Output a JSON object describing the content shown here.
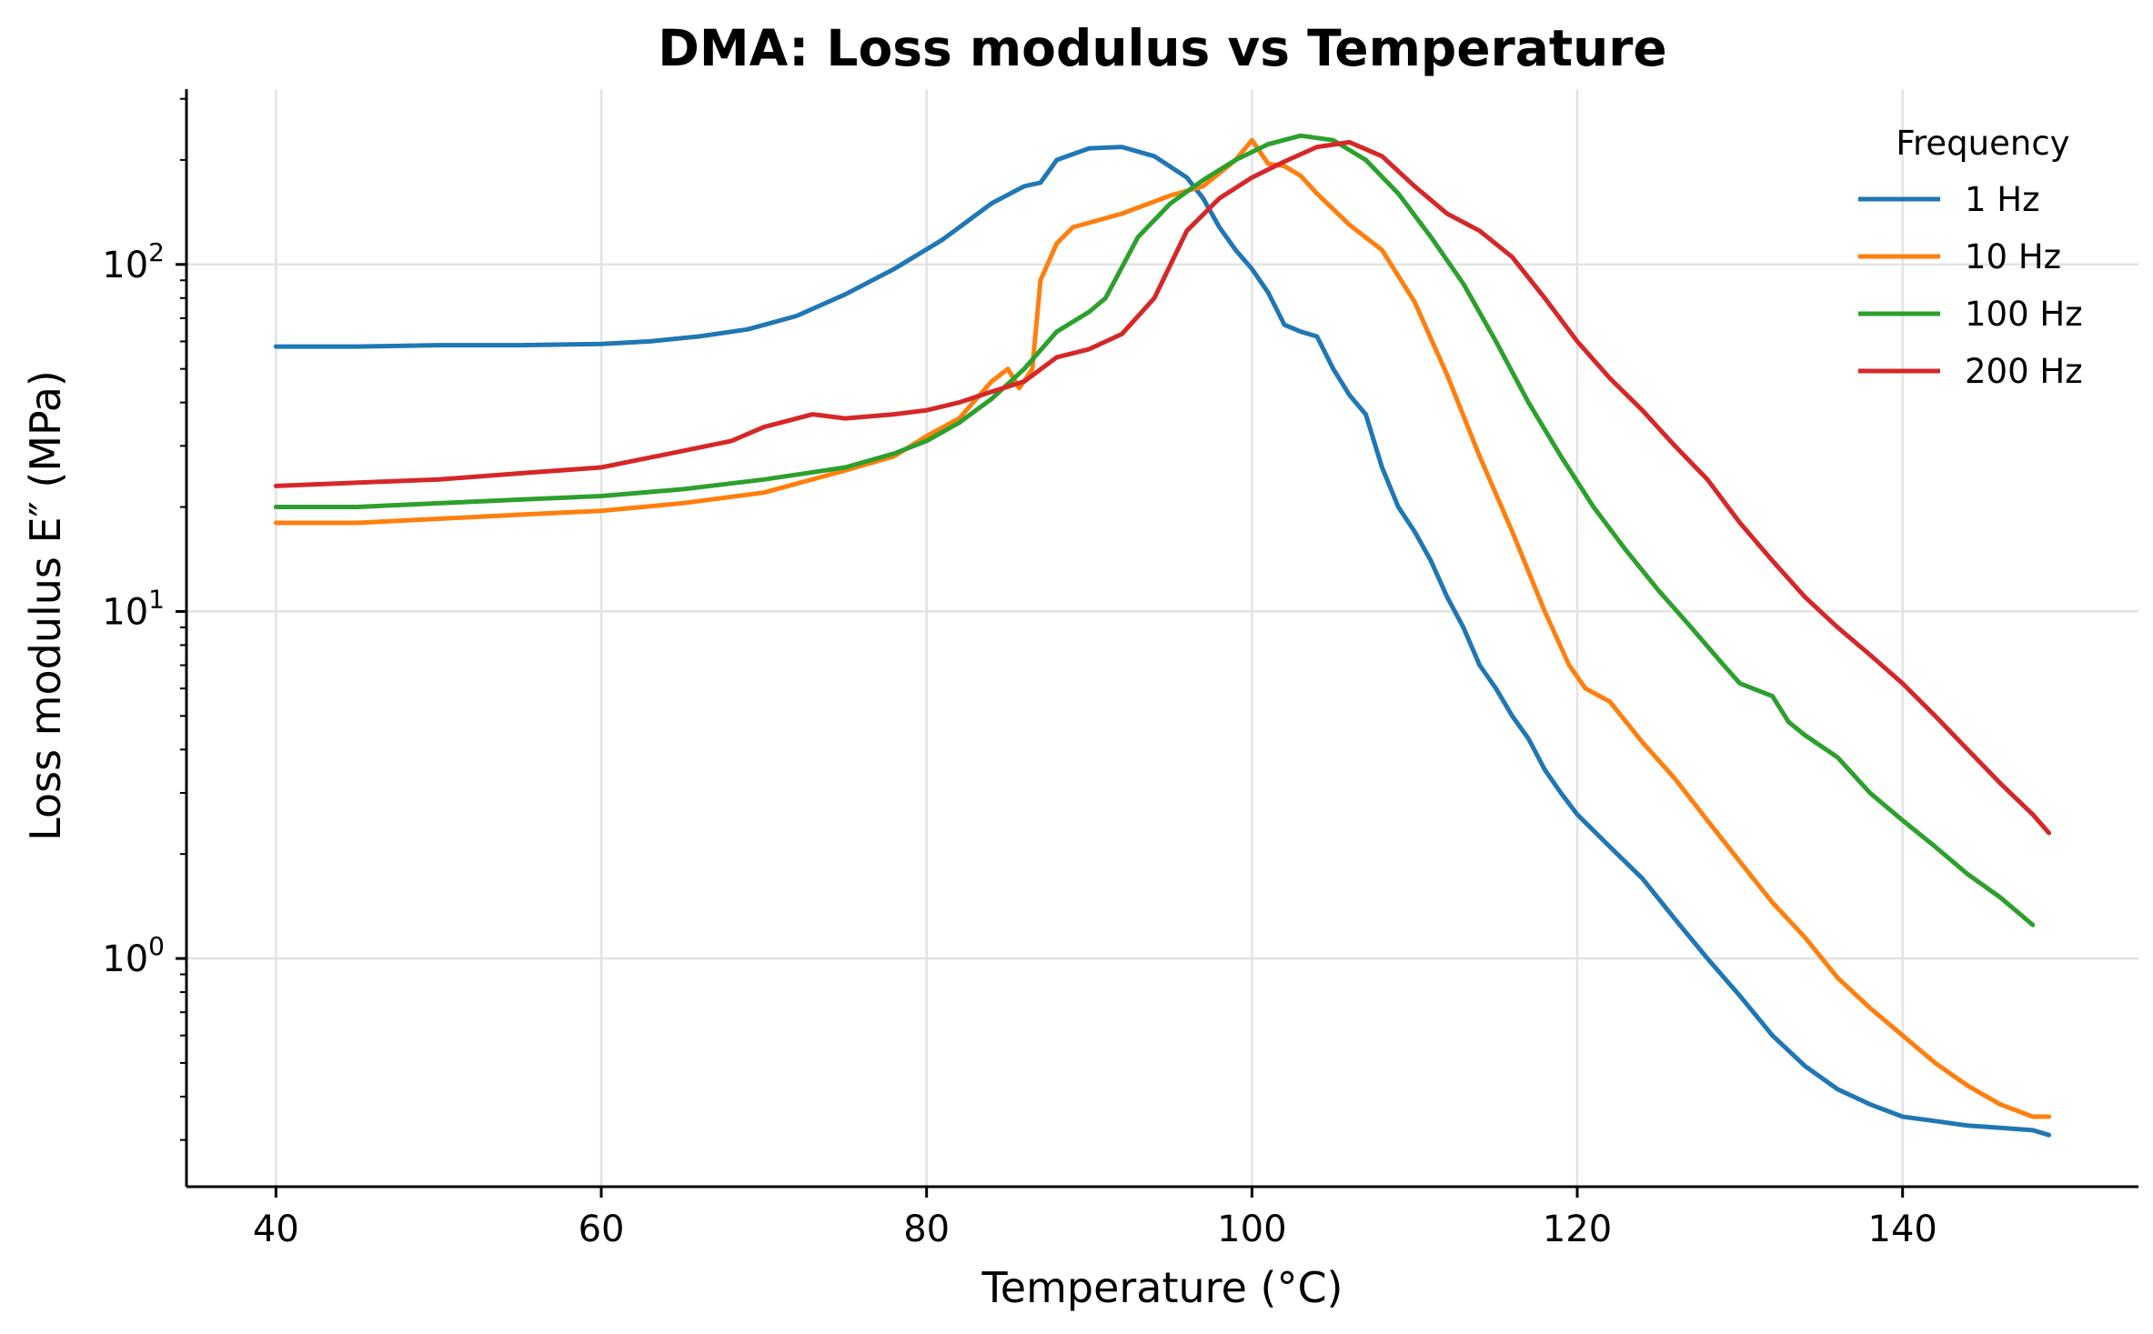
{
  "chart_data": {
    "type": "line",
    "title": "DMA: Loss modulus vs Temperature",
    "xlabel": "Temperature (°C)",
    "ylabel": "Loss modulus E″ (MPa)",
    "xlim": [
      34.5,
      154.5
    ],
    "ylim": [
      0.22,
      320
    ],
    "yscale": "log",
    "grid": true,
    "x_ticks": [
      40,
      60,
      80,
      100,
      120,
      140
    ],
    "y_ticks": [
      {
        "value": 1,
        "base": "10",
        "exp": "0"
      },
      {
        "value": 10,
        "base": "10",
        "exp": "1"
      },
      {
        "value": 100,
        "base": "10",
        "exp": "2"
      }
    ],
    "legend": {
      "title": "Frequency",
      "placement": "upper-right"
    },
    "series": [
      {
        "name": "1 Hz",
        "color": "#1f77b4",
        "points": [
          [
            40,
            58
          ],
          [
            45,
            58
          ],
          [
            50,
            58.5
          ],
          [
            55,
            58.5
          ],
          [
            60,
            59
          ],
          [
            63,
            60
          ],
          [
            66,
            62
          ],
          [
            69,
            65
          ],
          [
            72,
            71
          ],
          [
            75,
            82
          ],
          [
            78,
            97
          ],
          [
            81,
            118
          ],
          [
            84,
            150
          ],
          [
            86,
            168
          ],
          [
            87,
            172
          ],
          [
            88,
            200
          ],
          [
            90,
            216
          ],
          [
            92,
            218
          ],
          [
            94,
            205
          ],
          [
            96,
            178
          ],
          [
            97,
            155
          ],
          [
            98,
            128
          ],
          [
            99,
            110
          ],
          [
            100,
            97
          ],
          [
            101,
            83
          ],
          [
            102,
            67
          ],
          [
            103,
            64
          ],
          [
            104,
            62
          ],
          [
            105,
            50
          ],
          [
            106,
            42
          ],
          [
            107,
            37
          ],
          [
            108,
            26
          ],
          [
            109,
            20
          ],
          [
            110,
            17
          ],
          [
            111,
            14
          ],
          [
            112,
            11
          ],
          [
            113,
            9
          ],
          [
            114,
            7
          ],
          [
            115,
            6
          ],
          [
            116,
            5
          ],
          [
            117,
            4.3
          ],
          [
            118,
            3.5
          ],
          [
            119,
            3
          ],
          [
            120,
            2.6
          ],
          [
            122,
            2.1
          ],
          [
            124,
            1.7
          ],
          [
            126,
            1.3
          ],
          [
            128,
            1.0
          ],
          [
            130,
            0.78
          ],
          [
            132,
            0.6
          ],
          [
            134,
            0.49
          ],
          [
            136,
            0.42
          ],
          [
            138,
            0.38
          ],
          [
            140,
            0.35
          ],
          [
            142,
            0.34
          ],
          [
            144,
            0.33
          ],
          [
            146,
            0.325
          ],
          [
            148,
            0.32
          ],
          [
            149,
            0.31
          ]
        ]
      },
      {
        "name": "10 Hz",
        "color": "#ff7f0e",
        "points": [
          [
            40,
            18
          ],
          [
            45,
            18
          ],
          [
            50,
            18.5
          ],
          [
            55,
            19
          ],
          [
            60,
            19.5
          ],
          [
            65,
            20.5
          ],
          [
            70,
            22
          ],
          [
            75,
            25.5
          ],
          [
            78,
            28
          ],
          [
            80,
            32
          ],
          [
            82,
            36
          ],
          [
            84,
            46
          ],
          [
            85,
            50
          ],
          [
            85.7,
            44
          ],
          [
            86.5,
            50
          ],
          [
            87,
            90
          ],
          [
            88,
            115
          ],
          [
            89,
            128
          ],
          [
            92,
            140
          ],
          [
            95,
            158
          ],
          [
            97,
            168
          ],
          [
            99,
            200
          ],
          [
            100,
            228
          ],
          [
            101,
            195
          ],
          [
            102,
            192
          ],
          [
            103,
            180
          ],
          [
            104,
            160
          ],
          [
            106,
            130
          ],
          [
            108,
            110
          ],
          [
            110,
            78
          ],
          [
            112,
            48
          ],
          [
            114,
            28
          ],
          [
            116,
            17
          ],
          [
            118,
            10
          ],
          [
            119.5,
            7
          ],
          [
            120.5,
            6
          ],
          [
            122,
            5.5
          ],
          [
            124,
            4.2
          ],
          [
            126,
            3.3
          ],
          [
            128,
            2.5
          ],
          [
            130,
            1.9
          ],
          [
            132,
            1.45
          ],
          [
            134,
            1.15
          ],
          [
            136,
            0.88
          ],
          [
            138,
            0.72
          ],
          [
            140,
            0.6
          ],
          [
            142,
            0.5
          ],
          [
            144,
            0.43
          ],
          [
            146,
            0.38
          ],
          [
            148,
            0.35
          ],
          [
            149,
            0.35
          ]
        ]
      },
      {
        "name": "100 Hz",
        "color": "#2ca02c",
        "points": [
          [
            40,
            20
          ],
          [
            45,
            20
          ],
          [
            50,
            20.5
          ],
          [
            55,
            21
          ],
          [
            60,
            21.5
          ],
          [
            65,
            22.5
          ],
          [
            70,
            24
          ],
          [
            75,
            26
          ],
          [
            78,
            28.5
          ],
          [
            80,
            31
          ],
          [
            82,
            35
          ],
          [
            84,
            41
          ],
          [
            86,
            50
          ],
          [
            88,
            64
          ],
          [
            90,
            73
          ],
          [
            91,
            80
          ],
          [
            93,
            120
          ],
          [
            95,
            150
          ],
          [
            97,
            175
          ],
          [
            99,
            200
          ],
          [
            101,
            222
          ],
          [
            103,
            235
          ],
          [
            105,
            228
          ],
          [
            107,
            200
          ],
          [
            109,
            160
          ],
          [
            111,
            120
          ],
          [
            113,
            88
          ],
          [
            115,
            60
          ],
          [
            117,
            40
          ],
          [
            119,
            28
          ],
          [
            121,
            20
          ],
          [
            123,
            15
          ],
          [
            125,
            11.5
          ],
          [
            127,
            9
          ],
          [
            129,
            7
          ],
          [
            130,
            6.2
          ],
          [
            132,
            5.7
          ],
          [
            133,
            4.8
          ],
          [
            134,
            4.4
          ],
          [
            136,
            3.8
          ],
          [
            138,
            3.0
          ],
          [
            140,
            2.5
          ],
          [
            142,
            2.1
          ],
          [
            144,
            1.75
          ],
          [
            146,
            1.5
          ],
          [
            148,
            1.25
          ]
        ]
      },
      {
        "name": "200 Hz",
        "color": "#d62728",
        "points": [
          [
            40,
            23
          ],
          [
            45,
            23.5
          ],
          [
            50,
            24
          ],
          [
            55,
            25
          ],
          [
            60,
            26
          ],
          [
            65,
            29
          ],
          [
            68,
            31
          ],
          [
            70,
            34
          ],
          [
            73,
            37
          ],
          [
            75,
            36
          ],
          [
            78,
            37
          ],
          [
            80,
            38
          ],
          [
            82,
            40
          ],
          [
            84,
            43
          ],
          [
            86,
            46
          ],
          [
            88,
            54
          ],
          [
            90,
            57
          ],
          [
            92,
            63
          ],
          [
            94,
            80
          ],
          [
            96,
            125
          ],
          [
            98,
            155
          ],
          [
            100,
            178
          ],
          [
            102,
            198
          ],
          [
            104,
            218
          ],
          [
            106,
            225
          ],
          [
            108,
            205
          ],
          [
            110,
            168
          ],
          [
            112,
            140
          ],
          [
            114,
            125
          ],
          [
            116,
            105
          ],
          [
            118,
            80
          ],
          [
            120,
            60
          ],
          [
            122,
            47
          ],
          [
            124,
            38
          ],
          [
            126,
            30
          ],
          [
            128,
            24
          ],
          [
            130,
            18
          ],
          [
            132,
            14
          ],
          [
            134,
            11
          ],
          [
            136,
            9
          ],
          [
            138,
            7.5
          ],
          [
            140,
            6.2
          ],
          [
            142,
            5.0
          ],
          [
            144,
            4.0
          ],
          [
            146,
            3.2
          ],
          [
            148,
            2.6
          ],
          [
            149,
            2.3
          ]
        ]
      }
    ]
  }
}
